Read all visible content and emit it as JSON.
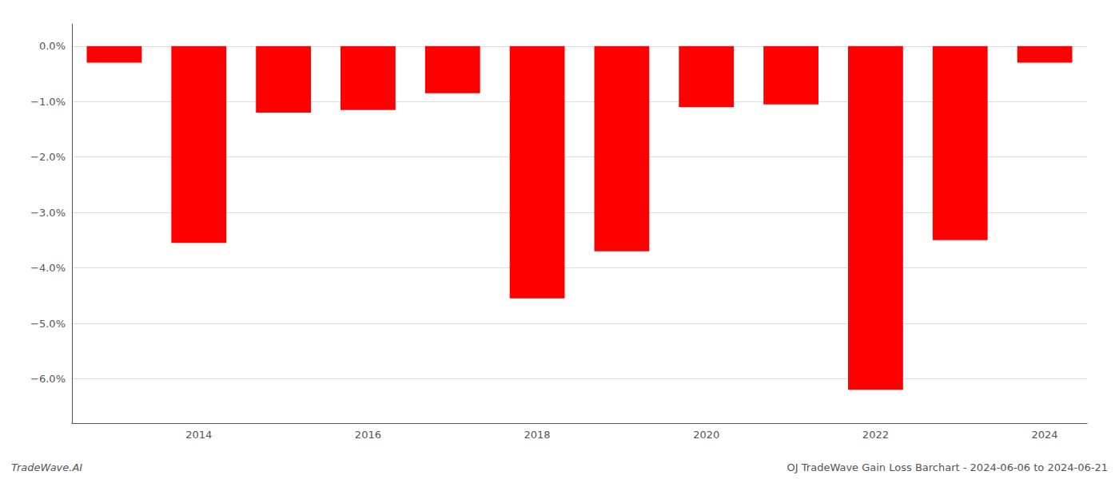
{
  "chart_data": {
    "type": "bar",
    "categories": [
      null,
      "2014",
      null,
      "2016",
      null,
      "2018",
      null,
      "2020",
      null,
      "2022",
      null,
      "2024"
    ],
    "values": [
      -0.3,
      -3.55,
      -1.2,
      -1.15,
      -0.85,
      -4.55,
      -3.7,
      -1.1,
      -1.05,
      -6.2,
      -3.5,
      -0.3
    ],
    "color": "#ff0000",
    "ylim": [
      -6.8,
      0.4
    ],
    "yticks": [
      {
        "value": 0.0,
        "label": "0.0%"
      },
      {
        "value": -1.0,
        "label": "−1.0%"
      },
      {
        "value": -2.0,
        "label": "−2.0%"
      },
      {
        "value": -3.0,
        "label": "−3.0%"
      },
      {
        "value": -4.0,
        "label": "−4.0%"
      },
      {
        "value": -5.0,
        "label": "−5.0%"
      },
      {
        "value": -6.0,
        "label": "−6.0%"
      }
    ],
    "grid": true,
    "annotations": [
      "TradeWave.AI",
      "OJ TradeWave Gain Loss Barchart - 2024-06-06 to 2024-06-21"
    ]
  }
}
